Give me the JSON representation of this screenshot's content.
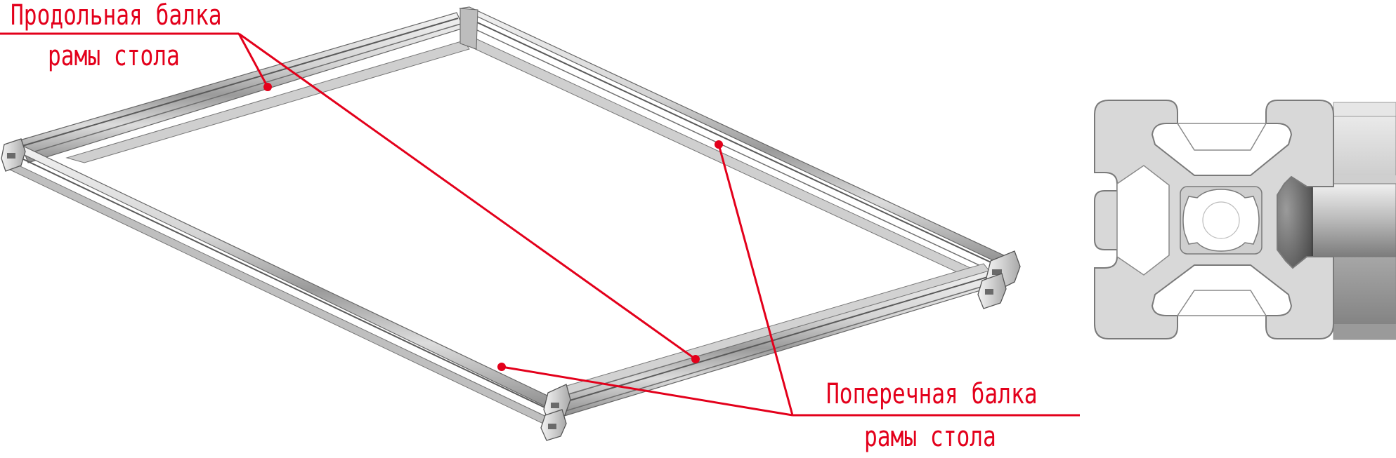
{
  "labels": {
    "longitudinal_line1": "Продольная балка",
    "longitudinal_line2": "рамы стола",
    "transverse_line1": "Поперечная балка",
    "transverse_line2": "рамы стола"
  },
  "colors": {
    "annotation": "#e3001b",
    "metal_light": "#e6e6e6",
    "metal_mid": "#c8c8c8",
    "metal_dark": "#8a8a8a",
    "metal_edge": "#5a5a5a",
    "profile_fill": "#d9d9d9"
  }
}
